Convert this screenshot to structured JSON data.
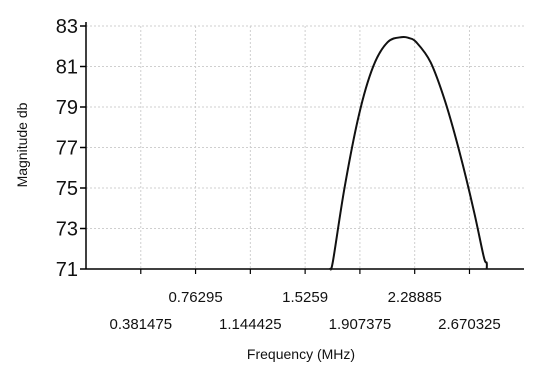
{
  "chart_data": {
    "type": "line",
    "title": "",
    "xlabel": "Frequency (MHz)",
    "ylabel": "Magnitude db",
    "ylim": [
      71,
      83
    ],
    "yticks": [
      "71",
      "73",
      "75",
      "77",
      "79",
      "81",
      "83"
    ],
    "xticks_upper": [
      "0.76295",
      "1.5259",
      "2.28885"
    ],
    "xticks_lower": [
      "0.381475",
      "1.144425",
      "1.907375",
      "2.670325"
    ],
    "xlim": [
      0,
      3.05
    ],
    "grid": true,
    "legend": "none",
    "series": [
      {
        "x": [
          1.7,
          1.72,
          1.8,
          1.9,
          2.0,
          2.1,
          2.2,
          2.25,
          2.3,
          2.4,
          2.5,
          2.6,
          2.7,
          2.77,
          2.79,
          2.79
        ],
        "y": [
          71.0,
          71.4,
          75.0,
          78.6,
          81.0,
          82.2,
          82.45,
          82.4,
          82.2,
          81.2,
          79.3,
          76.8,
          73.9,
          71.6,
          71.3,
          71.0
        ]
      }
    ]
  }
}
